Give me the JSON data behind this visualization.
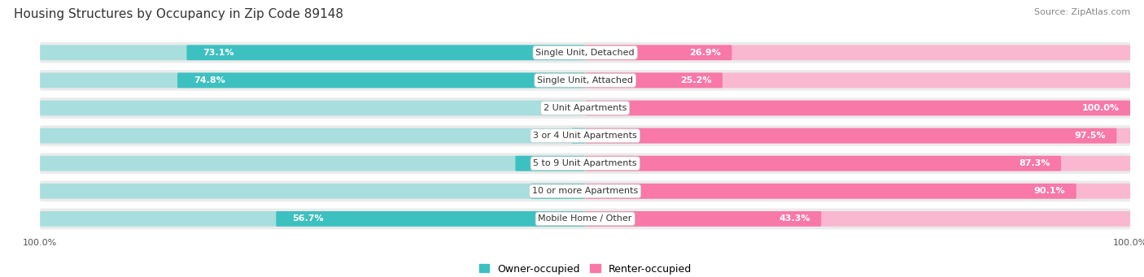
{
  "title": "Housing Structures by Occupancy in Zip Code 89148",
  "source": "Source: ZipAtlas.com",
  "categories": [
    "Single Unit, Detached",
    "Single Unit, Attached",
    "2 Unit Apartments",
    "3 or 4 Unit Apartments",
    "5 to 9 Unit Apartments",
    "10 or more Apartments",
    "Mobile Home / Other"
  ],
  "owner_pct": [
    73.1,
    74.8,
    0.0,
    2.5,
    12.8,
    9.9,
    56.7
  ],
  "renter_pct": [
    26.9,
    25.2,
    100.0,
    97.5,
    87.3,
    90.1,
    43.3
  ],
  "owner_color": "#3dc0c0",
  "owner_color_light": "#a8dede",
  "renter_color": "#f878a8",
  "renter_color_light": "#f9b8d0",
  "bg_row_color": "#ebebeb",
  "bg_white": "#ffffff",
  "title_fontsize": 11,
  "source_fontsize": 8,
  "label_fontsize": 8,
  "category_fontsize": 8,
  "axis_label_fontsize": 8,
  "legend_fontsize": 9,
  "bar_height": 0.55
}
